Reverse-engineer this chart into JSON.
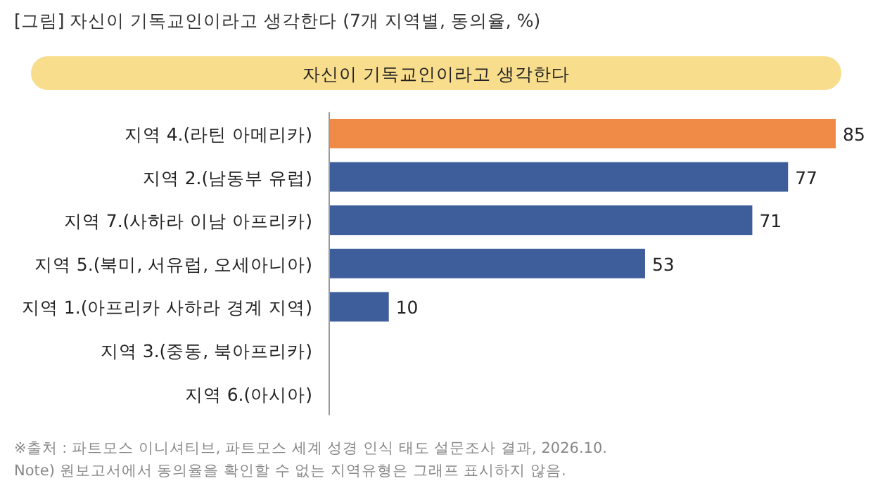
{
  "chart_data": {
    "type": "bar",
    "orientation": "horizontal",
    "title": "[그림] 자신이 기독교인이라고 생각한다 (7개 지역별, 동의율, %)",
    "subtitle": "자신이 기독교인이라고 생각한다",
    "categories": [
      "지역 4.(라틴 아메리카)",
      "지역 2.(남동부 유럽)",
      "지역 7.(사하라 이남 아프리카)",
      "지역 5.(북미, 서유럽, 오세아니아)",
      "지역 1.(아프리카 사하라 경계 지역)",
      "지역 3.(중동, 북아프리카)",
      "지역 6.(아시아)"
    ],
    "values": [
      85,
      77,
      71,
      53,
      10,
      null,
      null
    ],
    "colors": [
      "#ef8a47",
      "#3e5d9b",
      "#3e5d9b",
      "#3e5d9b",
      "#3e5d9b",
      null,
      null
    ],
    "data_labels": true,
    "annotations": [
      "※출처 : 파트모스 이니셔티브, 파트모스 세계 성경 인식 태도 설문조사 결과, 2026.10.",
      "Note) 원보고서에서 동의율을 확인할 수 없는 지역유형은 그래프 표시하지 않음."
    ]
  }
}
